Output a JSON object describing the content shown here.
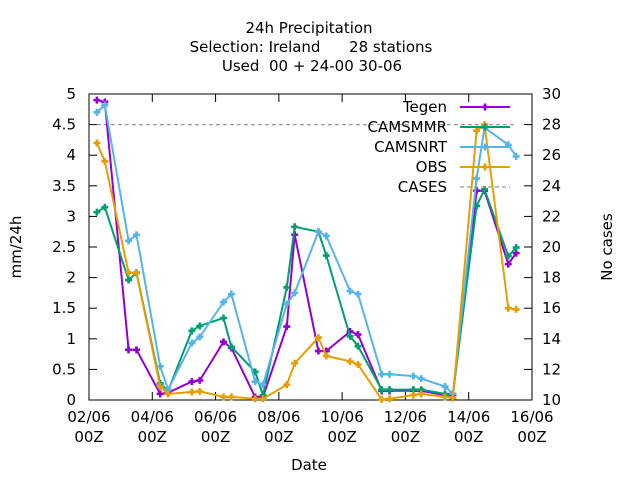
{
  "chart_data": {
    "type": "line",
    "title": [
      "24h Precipitation",
      "Selection: Ireland      28 stations",
      "Used  00 + 24-00 30-06"
    ],
    "xlabel": "Date",
    "ylabel": "mm/24h",
    "y2label": "No cases",
    "xlim": [
      0,
      14
    ],
    "ylim": [
      0,
      5
    ],
    "y2lim": [
      10,
      30
    ],
    "x_ticks": [
      {
        "value": 0,
        "line1": "02/06",
        "line2": "00Z"
      },
      {
        "value": 2,
        "line1": "04/06",
        "line2": "00Z"
      },
      {
        "value": 4,
        "line1": "06/06",
        "line2": "00Z"
      },
      {
        "value": 6,
        "line1": "08/06",
        "line2": "00Z"
      },
      {
        "value": 8,
        "line1": "10/06",
        "line2": "00Z"
      },
      {
        "value": 10,
        "line1": "12/06",
        "line2": "00Z"
      },
      {
        "value": 12,
        "line1": "14/06",
        "line2": "00Z"
      },
      {
        "value": 14,
        "line1": "16/06",
        "line2": "00Z"
      }
    ],
    "y_ticks": [
      "0",
      "0.5",
      "1",
      "1.5",
      "2",
      "2.5",
      "3",
      "3.5",
      "4",
      "4.5",
      "5"
    ],
    "y2_ticks": [
      "10",
      "12",
      "14",
      "16",
      "18",
      "20",
      "22",
      "24",
      "26",
      "28",
      "30"
    ],
    "legend_position": "top-right",
    "grid": false,
    "series": [
      {
        "name": "Tegen",
        "color": "#9400d3",
        "marker": "plus",
        "x": [
          0.25,
          0.5,
          1.25,
          1.5,
          2.25,
          2.5,
          3.25,
          3.5,
          4.25,
          4.5,
          5.25,
          5.5,
          6.25,
          6.5,
          7.25,
          7.5,
          8.25,
          8.5,
          9.25,
          9.5,
          10.25,
          10.5,
          11.25,
          11.5,
          12.25,
          12.5,
          13.25,
          13.5
        ],
        "values": [
          4.9,
          4.87,
          0.82,
          0.82,
          0.1,
          0.12,
          0.3,
          0.32,
          0.95,
          0.85,
          0.05,
          0.05,
          1.2,
          2.7,
          0.8,
          0.8,
          1.12,
          1.07,
          0.15,
          0.15,
          0.15,
          0.15,
          0.08,
          0.08,
          3.42,
          3.42,
          2.22,
          2.4
        ]
      },
      {
        "name": "CAMSMMR",
        "color": "#009e73",
        "marker": "plus",
        "x": [
          0.25,
          0.5,
          1.25,
          1.5,
          2.25,
          2.5,
          3.25,
          3.5,
          4.25,
          4.5,
          5.25,
          5.5,
          6.25,
          6.5,
          7.25,
          7.5,
          8.25,
          8.5,
          9.25,
          9.5,
          10.25,
          10.5,
          11.25,
          11.5,
          12.25,
          12.5,
          13.25,
          13.5
        ],
        "values": [
          3.07,
          3.15,
          1.96,
          2.08,
          0.27,
          0.15,
          1.13,
          1.21,
          1.34,
          0.87,
          0.46,
          0.08,
          1.84,
          2.83,
          2.75,
          2.36,
          1.04,
          0.88,
          0.17,
          0.17,
          0.17,
          0.17,
          0.1,
          0.1,
          3.17,
          3.44,
          2.35,
          2.49
        ]
      },
      {
        "name": "CAMSNRT",
        "color": "#56b4e9",
        "marker": "plus",
        "x": [
          0.25,
          0.5,
          1.25,
          1.5,
          2.25,
          2.5,
          3.25,
          3.5,
          4.25,
          4.5,
          5.25,
          5.5,
          6.25,
          6.5,
          7.25,
          7.5,
          8.25,
          8.5,
          9.25,
          9.5,
          10.25,
          10.5,
          11.25,
          11.5,
          12.25,
          12.5,
          13.25,
          13.5
        ],
        "values": [
          4.7,
          4.82,
          2.6,
          2.7,
          0.55,
          0.17,
          0.93,
          1.03,
          1.6,
          1.73,
          0.3,
          0.25,
          1.57,
          1.75,
          2.75,
          2.68,
          1.78,
          1.73,
          0.42,
          0.42,
          0.39,
          0.35,
          0.22,
          0.1,
          3.62,
          4.45,
          4.17,
          3.98
        ]
      },
      {
        "name": "OBS",
        "color": "#e69f00",
        "marker": "plus",
        "x": [
          0.25,
          0.5,
          1.25,
          1.5,
          2.25,
          2.5,
          3.25,
          3.5,
          4.25,
          4.5,
          5.25,
          5.5,
          6.25,
          6.5,
          7.25,
          7.5,
          8.25,
          8.5,
          9.25,
          9.5,
          10.25,
          10.5,
          11.25,
          11.5,
          12.25,
          12.5,
          13.25,
          13.5
        ],
        "values": [
          4.2,
          3.9,
          2.08,
          2.07,
          0.22,
          0.1,
          0.13,
          0.14,
          0.05,
          0.05,
          0.02,
          0.02,
          0.25,
          0.6,
          1.02,
          0.72,
          0.63,
          0.58,
          0.01,
          0.02,
          0.08,
          0.1,
          0.05,
          0.03,
          4.4,
          4.5,
          1.5,
          1.48
        ]
      },
      {
        "name": "CASES",
        "color": "#9b9b9b",
        "marker": "none",
        "dashed": true,
        "axis": "y2",
        "x": [
          0.25,
          0.5,
          1.25,
          1.5,
          2.25,
          2.5,
          3.25,
          3.5,
          4.25,
          4.5,
          5.25,
          5.5,
          6.25,
          6.5,
          7.25,
          7.5,
          8.25,
          8.5,
          9.25,
          9.5,
          10.25,
          10.5,
          11.25,
          11.5,
          12.25,
          12.5,
          13.25,
          13.5
        ],
        "values": [
          28,
          28,
          28,
          28,
          28,
          28,
          28,
          28,
          28,
          28,
          28,
          28,
          28,
          28,
          28,
          28,
          28,
          28,
          28,
          28,
          28,
          28,
          28,
          28,
          28,
          28,
          28,
          28
        ]
      }
    ]
  }
}
